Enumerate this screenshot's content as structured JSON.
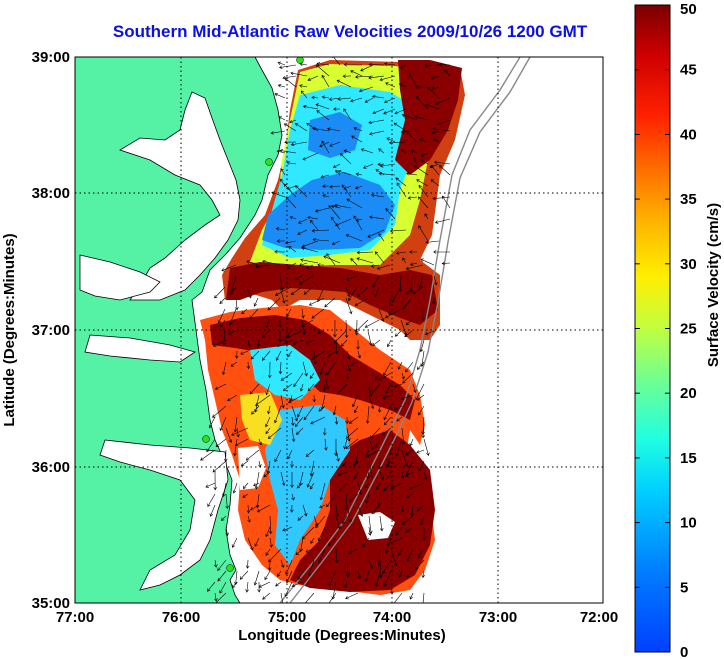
{
  "title": "Southern Mid-Atlantic Raw Velocities 2009/10/26 1200 GMT",
  "axes": {
    "xlabel": "Longitude (Degrees:Minutes)",
    "ylabel": "Latitude (Degrees:Minutes)",
    "xticks": [
      "77:00",
      "76:00",
      "75:00",
      "74:00",
      "73:00",
      "72:00"
    ],
    "yticks": [
      "39:00",
      "38:00",
      "37:00",
      "36:00",
      "35:00"
    ]
  },
  "colorbar": {
    "label": "Surface Velocity (cm/s)",
    "ticks": [
      "50",
      "45",
      "40",
      "35",
      "30",
      "25",
      "20",
      "15",
      "10",
      "5",
      "0"
    ],
    "range": [
      0,
      50
    ]
  },
  "colors": {
    "land": "#55f2a6",
    "water": "#ffffff",
    "title": "#0a10e6",
    "station": "#2ee01b"
  }
}
